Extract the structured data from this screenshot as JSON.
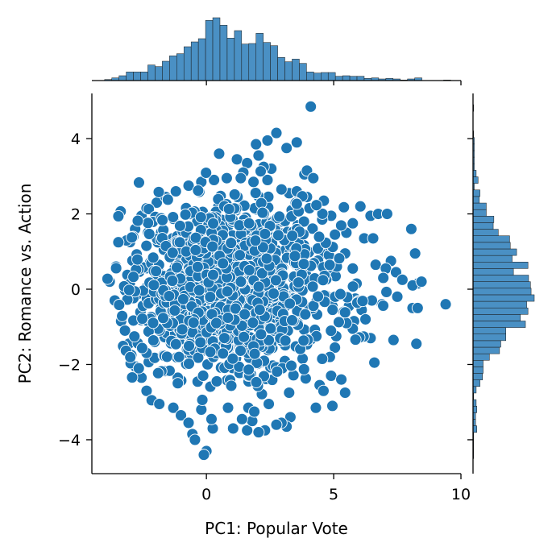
{
  "chart_data": {
    "type": "scatter",
    "subtype": "jointplot",
    "xlabel": "PC1: Popular Vote",
    "ylabel": "PC2: Romance vs. Action",
    "xlim": [
      -4.5,
      10.0
    ],
    "ylim": [
      -4.9,
      5.2
    ],
    "x_ticks": [
      0,
      5,
      10
    ],
    "y_ticks": [
      -4,
      -2,
      0,
      2,
      4
    ],
    "x_tick_labels": [
      "0",
      "5",
      "10"
    ],
    "y_tick_labels": [
      "−4",
      "−2",
      "0",
      "2",
      "4"
    ],
    "grid": false,
    "legend": "none",
    "colors": {
      "points": "#1f77b4",
      "point_edge": "#ffffff",
      "hist_fill": "#4a90c4",
      "hist_edge": "#1a1a1a"
    },
    "points": [
      [
        4.1,
        4.85
      ],
      [
        2.75,
        4.15
      ],
      [
        2.4,
        3.95
      ],
      [
        1.95,
        3.85
      ],
      [
        3.55,
        3.9
      ],
      [
        3.15,
        3.75
      ],
      [
        0.5,
        3.6
      ],
      [
        1.2,
        3.45
      ],
      [
        2.05,
        3.55
      ],
      [
        1.6,
        3.35
      ],
      [
        3.85,
        3.05
      ],
      [
        2.55,
        3.2
      ],
      [
        1.45,
        3.1
      ],
      [
        2.25,
        3.25
      ],
      [
        3.95,
        3.15
      ],
      [
        4.2,
        2.95
      ],
      [
        4.6,
        2.35
      ],
      [
        3.25,
        2.55
      ],
      [
        2.25,
        2.25
      ],
      [
        3.95,
        2.45
      ],
      [
        3.35,
        2.1
      ],
      [
        4.9,
        1.95
      ],
      [
        6.05,
        2.2
      ],
      [
        6.45,
        1.95
      ],
      [
        6.75,
        2.0
      ],
      [
        7.1,
        2.0
      ],
      [
        5.5,
        1.5
      ],
      [
        5.75,
        1.75
      ],
      [
        6.2,
        1.35
      ],
      [
        6.55,
        1.35
      ],
      [
        8.05,
        1.6
      ],
      [
        8.2,
        0.95
      ],
      [
        7.25,
        0.75
      ],
      [
        6.65,
        0.65
      ],
      [
        7.05,
        0.55
      ],
      [
        7.45,
        0.45
      ],
      [
        7.7,
        0.25
      ],
      [
        6.95,
        0.3
      ],
      [
        8.3,
        0.15
      ],
      [
        8.1,
        0.1
      ],
      [
        8.45,
        0.2
      ],
      [
        9.4,
        -0.4
      ],
      [
        8.1,
        -0.5
      ],
      [
        8.3,
        -0.5
      ],
      [
        7.5,
        -0.2
      ],
      [
        6.9,
        -0.4
      ],
      [
        6.5,
        -0.3
      ],
      [
        6.1,
        -0.55
      ],
      [
        5.6,
        -0.45
      ],
      [
        6.25,
        -0.8
      ],
      [
        5.8,
        -0.85
      ],
      [
        5.4,
        -0.6
      ],
      [
        5.75,
        -1.05
      ],
      [
        6.45,
        -1.3
      ],
      [
        7.35,
        -1.35
      ],
      [
        8.25,
        -1.45
      ],
      [
        6.6,
        -1.95
      ],
      [
        5.05,
        -1.55
      ],
      [
        4.85,
        -1.8
      ],
      [
        4.9,
        -2.3
      ],
      [
        4.45,
        -2.55
      ],
      [
        4.6,
        -2.7
      ],
      [
        5.45,
        -2.75
      ],
      [
        5.3,
        -2.4
      ],
      [
        4.95,
        -3.1
      ],
      [
        4.3,
        -3.15
      ],
      [
        3.3,
        -3.4
      ],
      [
        3.15,
        -3.65
      ],
      [
        2.95,
        -3.55
      ],
      [
        2.75,
        -3.6
      ],
      [
        2.3,
        -3.75
      ],
      [
        2.05,
        -3.8
      ],
      [
        1.6,
        -3.75
      ],
      [
        1.8,
        -3.5
      ],
      [
        1.05,
        -3.7
      ],
      [
        1.4,
        -3.45
      ],
      [
        0.25,
        -3.7
      ],
      [
        0.2,
        -3.45
      ],
      [
        -0.55,
        -3.85
      ],
      [
        -0.45,
        -4.0
      ],
      [
        0.0,
        -4.3
      ],
      [
        -0.1,
        -4.4
      ],
      [
        -3.8,
        0.2
      ],
      [
        -3.6,
        -0.3
      ],
      [
        -3.55,
        0.6
      ],
      [
        -3.35,
        -0.85
      ],
      [
        -3.2,
        -1.1
      ],
      [
        -3.05,
        -1.45
      ],
      [
        -2.95,
        -1.75
      ],
      [
        -2.8,
        -2.05
      ],
      [
        -2.55,
        -2.35
      ],
      [
        -2.35,
        -2.7
      ],
      [
        -2.15,
        -2.95
      ],
      [
        -1.85,
        -3.05
      ],
      [
        -1.3,
        -3.15
      ],
      [
        -1.0,
        -3.35
      ],
      [
        -0.7,
        -3.55
      ],
      [
        -3.0,
        1.25
      ],
      [
        -2.8,
        1.6
      ],
      [
        -2.55,
        1.95
      ],
      [
        -2.35,
        2.15
      ],
      [
        -1.95,
        2.3
      ],
      [
        -1.6,
        2.45
      ],
      [
        -1.2,
        2.6
      ],
      [
        -0.7,
        2.75
      ],
      [
        -0.2,
        2.85
      ],
      [
        0.3,
        2.9
      ],
      [
        0.8,
        2.95
      ],
      [
        1.35,
        2.95
      ],
      [
        1.85,
        2.85
      ],
      [
        2.4,
        2.9
      ],
      [
        2.95,
        2.65
      ],
      [
        3.55,
        2.6
      ],
      [
        4.05,
        2.15
      ],
      [
        4.55,
        1.85
      ],
      [
        5.05,
        1.45
      ],
      [
        5.45,
        0.95
      ],
      [
        5.75,
        0.55
      ],
      [
        5.9,
        0.15
      ],
      [
        5.85,
        -0.25
      ],
      [
        5.5,
        -0.9
      ],
      [
        5.1,
        -1.25
      ],
      [
        4.55,
        -1.85
      ],
      [
        3.9,
        -2.35
      ],
      [
        3.25,
        -2.75
      ],
      [
        2.45,
        -3.05
      ],
      [
        1.65,
        -3.15
      ],
      [
        0.85,
        -3.15
      ],
      [
        -0.2,
        -3.2
      ]
    ]
  }
}
